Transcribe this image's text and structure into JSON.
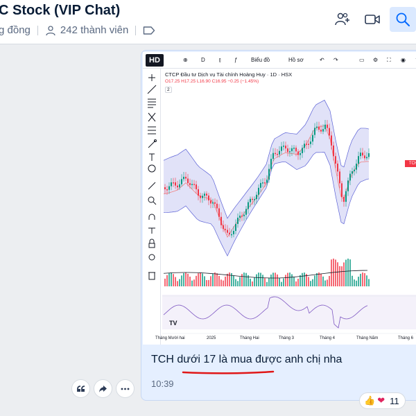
{
  "header": {
    "title": "Stock (VIP Chat)",
    "title_prefix": "C",
    "community": "g đồng",
    "members": "242 thành viên",
    "icons": [
      "add-group-icon",
      "video-call-icon",
      "search-icon"
    ]
  },
  "message": {
    "text": "TCH dưới 17 là mua được anh chị nha",
    "time": "10:39"
  },
  "actions": [
    "quote-icon",
    "share-icon",
    "more-icon"
  ],
  "reactions": {
    "icons": [
      "thumbs-up",
      "heart"
    ],
    "count": "11"
  },
  "chart_image": {
    "badge": "HD",
    "toolbar": [
      "D",
      "Biểu đồ",
      "Hồ sơ"
    ],
    "symbol": "CTCP Đầu tư Dịch vụ Tài chính Hoàng Huy · 1D · HSX",
    "ohlc": "O17.25 H17.25 L16.90 C16.95 −0.25 (−1.45%)",
    "collapse": "2",
    "price_tag": "TCH",
    "x_labels": [
      "Tháng Mười hai",
      "2025",
      "Tháng Hai",
      "Tháng 3",
      "Tháng 4",
      "Tháng Năm",
      "Tháng 6"
    ]
  },
  "colors": {
    "up": "#089981",
    "down": "#f23645",
    "band": "#b2b5f0",
    "accent": "#0068ff"
  }
}
